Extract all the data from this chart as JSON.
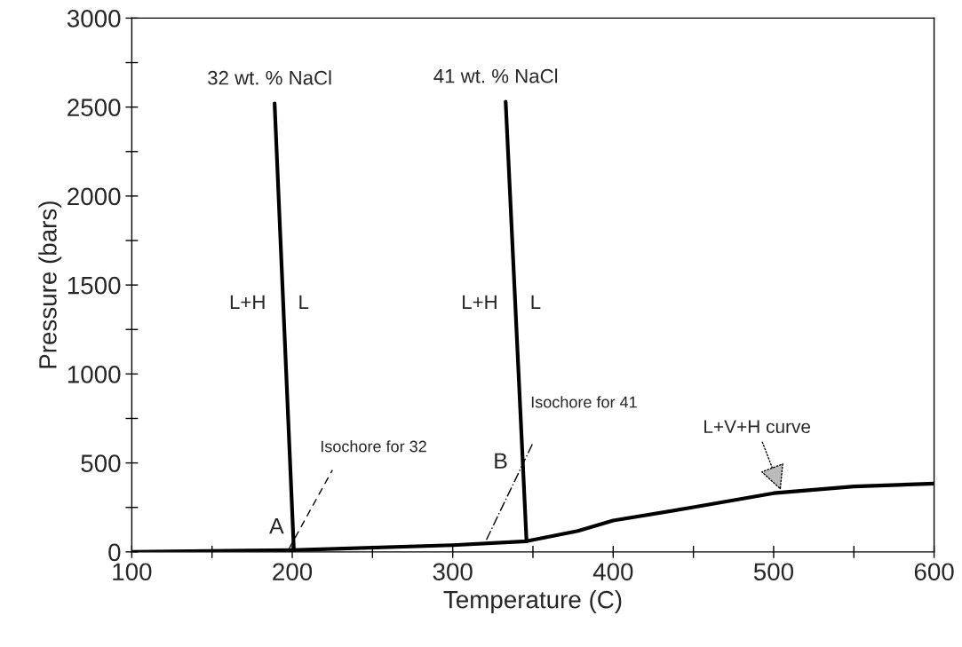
{
  "chart_data": {
    "type": "line",
    "xlabel": "Temperature (C)",
    "ylabel": "Pressure (bars)",
    "xlim": [
      100,
      600
    ],
    "ylim": [
      0,
      3000
    ],
    "xticks": [
      100,
      {
        "value": 150,
        "label": null
      },
      200,
      {
        "value": 250,
        "label": null
      },
      300,
      {
        "value": 350,
        "label": null
      },
      400,
      {
        "value": 450,
        "label": null
      },
      500,
      {
        "value": 550,
        "label": null
      },
      600
    ],
    "yticks": [
      0,
      {
        "value": 250,
        "label": null
      },
      500,
      {
        "value": 750,
        "label": null
      },
      1000,
      {
        "value": 1250,
        "label": null
      },
      1500,
      {
        "value": 1750,
        "label": null
      },
      2000,
      {
        "value": 2250,
        "label": null
      },
      2500,
      {
        "value": 2750,
        "label": null
      },
      3000
    ],
    "grid": false,
    "legend": false,
    "marker": "none",
    "series": [
      {
        "color": "#000000",
        "line_style": "solid",
        "x": [
          100,
          200,
          300,
          346,
          378,
          400,
          450,
          500,
          550,
          600
        ],
        "values": [
          0,
          10,
          38,
          60,
          118,
          176,
          251,
          330,
          368,
          384
        ]
      },
      {
        "color": "#000000",
        "line_style": "solid",
        "x": [
          189,
          201
        ],
        "values": [
          2520,
          10
        ]
      },
      {
        "color": "#000000",
        "line_style": "solid",
        "x": [
          333,
          346
        ],
        "values": [
          2530,
          60
        ]
      },
      {
        "color": "#000000",
        "line_style": "dashed",
        "x": [
          198,
          225
        ],
        "values": [
          18,
          460
        ]
      },
      {
        "color": "#000000",
        "line_style": "dashdot",
        "x": [
          321,
          350
        ],
        "values": [
          68,
          612
        ]
      }
    ],
    "annotations": [
      "32 wt. % NaCl",
      "41 wt. % NaCl",
      "L+H",
      "L",
      "L+H",
      "L",
      "A",
      "B",
      "Isochore for 32",
      "Isochore for 41",
      {
        "text": "L+V+H curve",
        "x": 505,
        "y": 335
      }
    ]
  }
}
